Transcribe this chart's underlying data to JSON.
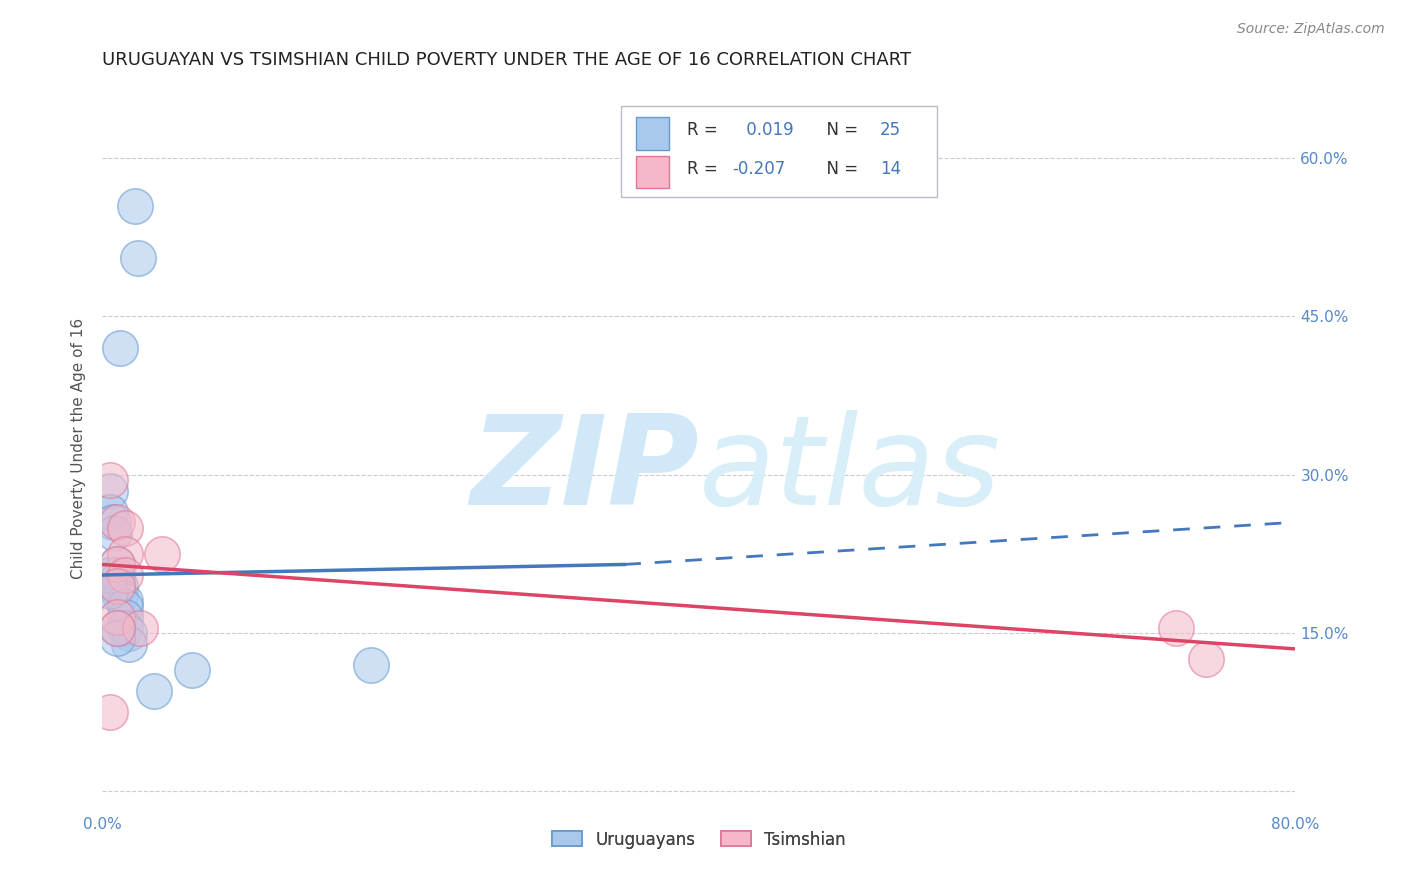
{
  "title": "URUGUAYAN VS TSIMSHIAN CHILD POVERTY UNDER THE AGE OF 16 CORRELATION CHART",
  "source": "Source: ZipAtlas.com",
  "ylabel": "Child Poverty Under the Age of 16",
  "xlim": [
    0.0,
    0.8
  ],
  "ylim": [
    -0.02,
    0.67
  ],
  "yticks": [
    0.0,
    0.15,
    0.3,
    0.45,
    0.6
  ],
  "ytick_right_labels": [
    "",
    "15.0%",
    "30.0%",
    "45.0%",
    "60.0%"
  ],
  "xticks": [
    0.0,
    0.1,
    0.2,
    0.3,
    0.4,
    0.5,
    0.6,
    0.7,
    0.8
  ],
  "xtick_labels": [
    "0.0%",
    "",
    "",
    "",
    "",
    "",
    "",
    "",
    "80.0%"
  ],
  "blue_R": 0.019,
  "blue_N": 25,
  "pink_R": -0.207,
  "pink_N": 14,
  "blue_color": "#a8c8ee",
  "pink_color": "#f4b8c8",
  "blue_edge": "#6699cc",
  "pink_edge": "#dd7799",
  "trend_blue_color": "#4477bb",
  "trend_pink_color": "#dd4466",
  "axis_label_color": "#5588cc",
  "watermark_color": "#d0e8f8",
  "background_color": "#ffffff",
  "blue_dots_x": [
    0.022,
    0.024,
    0.012,
    0.005,
    0.005,
    0.007,
    0.008,
    0.01,
    0.01,
    0.01,
    0.012,
    0.012,
    0.015,
    0.015,
    0.015,
    0.015,
    0.018,
    0.018,
    0.06,
    0.18,
    0.005,
    0.005,
    0.01,
    0.01,
    0.035
  ],
  "blue_dots_y": [
    0.555,
    0.505,
    0.42,
    0.285,
    0.265,
    0.255,
    0.245,
    0.215,
    0.205,
    0.2,
    0.195,
    0.185,
    0.18,
    0.175,
    0.165,
    0.155,
    0.15,
    0.14,
    0.115,
    0.12,
    0.205,
    0.19,
    0.155,
    0.145,
    0.095
  ],
  "pink_dots_x": [
    0.005,
    0.01,
    0.015,
    0.015,
    0.01,
    0.015,
    0.01,
    0.01,
    0.025,
    0.04,
    0.005,
    0.72,
    0.74,
    0.01
  ],
  "pink_dots_y": [
    0.295,
    0.255,
    0.25,
    0.225,
    0.215,
    0.205,
    0.195,
    0.165,
    0.155,
    0.225,
    0.075,
    0.155,
    0.125,
    0.155
  ],
  "dot_size": 650,
  "dot_alpha": 0.55,
  "title_fontsize": 13,
  "source_fontsize": 10,
  "ylabel_fontsize": 11,
  "tick_fontsize": 11,
  "legend_text_color": "#333333",
  "legend_num_color": "#4477bb",
  "blue_trend_start_x": 0.0,
  "blue_trend_start_y": 0.205,
  "blue_trend_solid_end_x": 0.35,
  "blue_trend_solid_end_y": 0.215,
  "blue_trend_dash_end_x": 0.8,
  "blue_trend_dash_end_y": 0.255,
  "pink_trend_start_x": 0.0,
  "pink_trend_start_y": 0.215,
  "pink_trend_end_x": 0.8,
  "pink_trend_end_y": 0.135
}
